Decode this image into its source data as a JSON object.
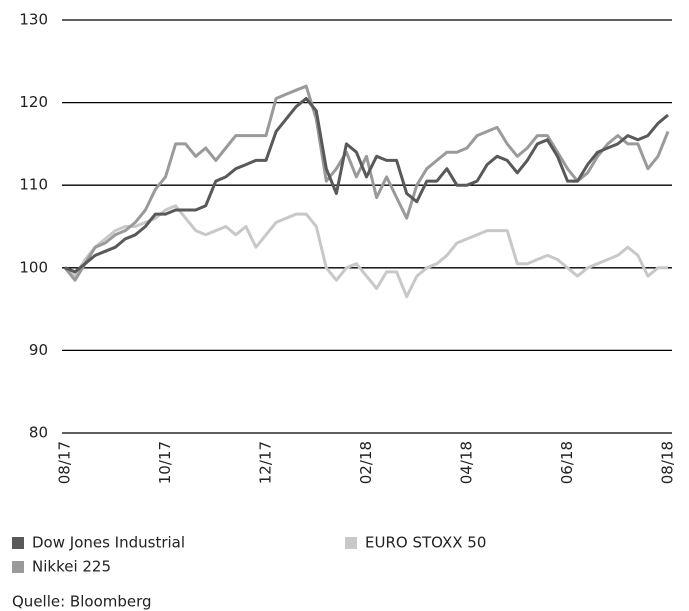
{
  "chart_data": {
    "type": "line",
    "categories": [
      "08/17",
      null,
      null,
      null,
      null,
      null,
      null,
      null,
      null,
      null,
      "10/17",
      null,
      null,
      null,
      null,
      null,
      null,
      null,
      null,
      null,
      "12/17",
      null,
      null,
      null,
      null,
      null,
      null,
      null,
      null,
      null,
      "02/18",
      null,
      null,
      null,
      null,
      null,
      null,
      null,
      null,
      null,
      "04/18",
      null,
      null,
      null,
      null,
      null,
      null,
      null,
      null,
      null,
      "06/18",
      null,
      null,
      null,
      null,
      null,
      null,
      null,
      null,
      null,
      "08/18"
    ],
    "series": [
      {
        "name": "Dow Jones Industrial",
        "color": "#595959",
        "values": [
          100,
          99.5,
          100.5,
          101.5,
          102,
          102.5,
          103.5,
          104,
          105,
          106.5,
          106.5,
          107,
          107,
          107,
          107.5,
          110.5,
          111,
          112,
          112.5,
          113,
          113,
          116.5,
          118,
          119.5,
          120.5,
          119,
          112,
          109,
          115,
          114,
          111,
          113.5,
          113,
          113,
          109,
          108,
          110.5,
          110.5,
          112,
          110,
          110,
          110.5,
          112.5,
          113.5,
          113,
          111.5,
          113,
          115,
          115.5,
          113.5,
          110.5,
          110.5,
          112.5,
          114,
          114.5,
          115,
          116,
          115.5,
          116,
          117.5,
          118.5
        ]
      },
      {
        "name": "Nikkei 225",
        "color": "#9a9a9a",
        "values": [
          100,
          98.5,
          100.5,
          102.5,
          103,
          104,
          104.5,
          105.5,
          107,
          109.5,
          111,
          115,
          115,
          113.5,
          114.5,
          113,
          114.5,
          116,
          116,
          116,
          116,
          120.5,
          121,
          121.5,
          122,
          118,
          110.5,
          112,
          114,
          111,
          113.5,
          108.5,
          111,
          108.5,
          106,
          110,
          112,
          113,
          114,
          114,
          114.5,
          116,
          116.5,
          117,
          115,
          113.5,
          114.5,
          116,
          116,
          114,
          112,
          110.5,
          111.5,
          113.5,
          115,
          116,
          115,
          115,
          112,
          113.5,
          116.5
        ]
      },
      {
        "name": "EURO STOXX 50",
        "color": "#c8c8c8",
        "values": [
          100,
          99,
          101,
          102.5,
          103.5,
          104.5,
          105,
          105,
          105.5,
          106,
          107,
          107.5,
          106,
          104.5,
          104,
          104.5,
          105,
          104,
          105,
          102.5,
          104,
          105.5,
          106,
          106.5,
          106.5,
          105,
          100,
          98.5,
          100,
          100.5,
          99,
          97.5,
          99.5,
          99.5,
          96.5,
          99,
          100,
          100.5,
          101.5,
          103,
          103.5,
          104,
          104.5,
          104.5,
          104.5,
          100.5,
          100.5,
          101,
          101.5,
          101,
          100,
          99,
          100,
          100.5,
          101,
          101.5,
          102.5,
          101.5,
          99,
          100,
          100
        ]
      }
    ],
    "ylim": [
      80,
      130
    ],
    "yticks": [
      80,
      90,
      100,
      110,
      120,
      130
    ],
    "grid": true,
    "legend": "bottom",
    "source": "Quelle: Bloomberg"
  }
}
